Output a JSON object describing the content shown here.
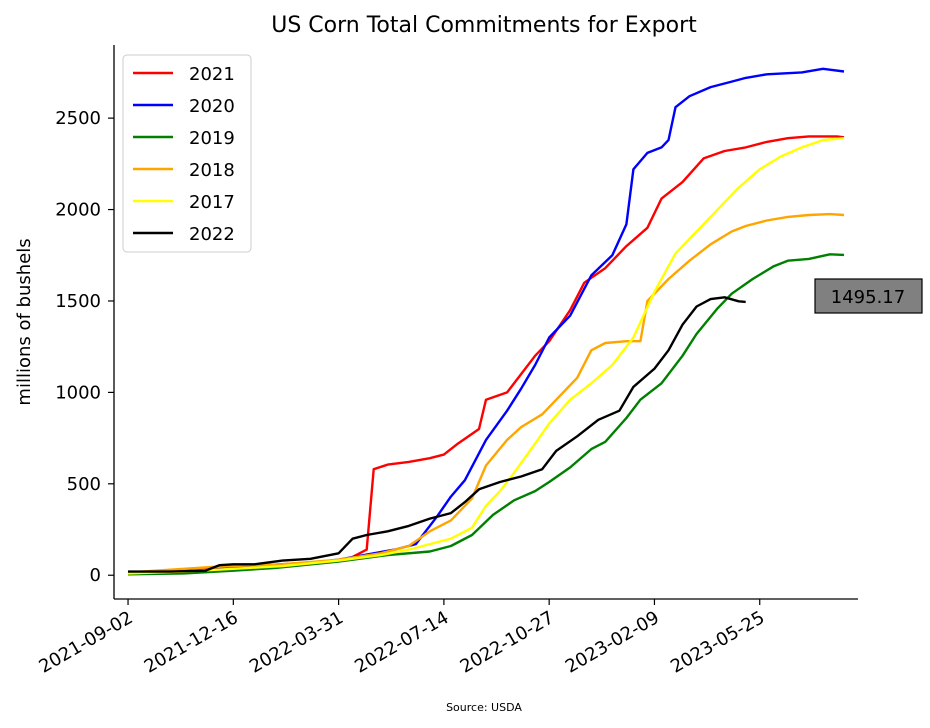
{
  "chart_data": {
    "type": "line",
    "title": "US Corn Total Commitments for Export",
    "ylabel": "millions of bushels",
    "xlabel": "",
    "source": "Source: USDA",
    "x_ticks": [
      "2021-09-02",
      "2021-12-16",
      "2022-03-31",
      "2022-07-14",
      "2022-10-27",
      "2023-02-09",
      "2023-05-25"
    ],
    "y_ticks": [
      0,
      500,
      1000,
      1500,
      2000,
      2500
    ],
    "x_range": [
      "2021-08-19",
      "2023-08-31"
    ],
    "ylim": [
      -130,
      2900
    ],
    "grid": false,
    "legend_position": "top-left",
    "callout": "1495.17",
    "series": [
      {
        "name": "2021",
        "color": "#ff0000",
        "points": [
          [
            "2021-09-02",
            10
          ],
          [
            "2021-10-07",
            20
          ],
          [
            "2021-11-11",
            30
          ],
          [
            "2021-12-16",
            45
          ],
          [
            "2022-02-01",
            60
          ],
          [
            "2022-03-31",
            80
          ],
          [
            "2022-04-14",
            100
          ],
          [
            "2022-04-28",
            140
          ],
          [
            "2022-05-05",
            580
          ],
          [
            "2022-05-19",
            605
          ],
          [
            "2022-06-09",
            620
          ],
          [
            "2022-06-30",
            640
          ],
          [
            "2022-07-14",
            660
          ],
          [
            "2022-07-28",
            720
          ],
          [
            "2022-08-18",
            800
          ],
          [
            "2022-08-25",
            960
          ],
          [
            "2022-09-15",
            1000
          ],
          [
            "2022-09-29",
            1100
          ],
          [
            "2022-10-13",
            1200
          ],
          [
            "2022-10-27",
            1280
          ],
          [
            "2022-11-17",
            1450
          ],
          [
            "2022-12-01",
            1600
          ],
          [
            "2022-12-22",
            1680
          ],
          [
            "2023-01-12",
            1800
          ],
          [
            "2023-02-02",
            1900
          ],
          [
            "2023-02-16",
            2060
          ],
          [
            "2023-03-09",
            2150
          ],
          [
            "2023-03-30",
            2280
          ],
          [
            "2023-04-20",
            2320
          ],
          [
            "2023-05-11",
            2340
          ],
          [
            "2023-06-01",
            2370
          ],
          [
            "2023-06-22",
            2390
          ],
          [
            "2023-07-13",
            2400
          ],
          [
            "2023-08-10",
            2400
          ],
          [
            "2023-08-17",
            2395
          ]
        ]
      },
      {
        "name": "2020",
        "color": "#0000ff",
        "points": [
          [
            "2021-09-02",
            10
          ],
          [
            "2021-11-11",
            20
          ],
          [
            "2021-12-16",
            40
          ],
          [
            "2022-02-17",
            60
          ],
          [
            "2022-03-31",
            85
          ],
          [
            "2022-05-05",
            120
          ],
          [
            "2022-05-26",
            140
          ],
          [
            "2022-06-16",
            170
          ],
          [
            "2022-07-07",
            320
          ],
          [
            "2022-07-21",
            430
          ],
          [
            "2022-08-04",
            520
          ],
          [
            "2022-08-25",
            740
          ],
          [
            "2022-09-15",
            900
          ],
          [
            "2022-09-29",
            1020
          ],
          [
            "2022-10-13",
            1150
          ],
          [
            "2022-10-27",
            1300
          ],
          [
            "2022-11-17",
            1420
          ],
          [
            "2022-12-08",
            1640
          ],
          [
            "2022-12-29",
            1750
          ],
          [
            "2023-01-12",
            1920
          ],
          [
            "2023-01-19",
            2220
          ],
          [
            "2023-02-02",
            2310
          ],
          [
            "2023-02-16",
            2340
          ],
          [
            "2023-02-23",
            2380
          ],
          [
            "2023-03-02",
            2560
          ],
          [
            "2023-03-16",
            2620
          ],
          [
            "2023-04-06",
            2670
          ],
          [
            "2023-04-27",
            2700
          ],
          [
            "2023-05-11",
            2720
          ],
          [
            "2023-06-01",
            2740
          ],
          [
            "2023-07-06",
            2750
          ],
          [
            "2023-07-27",
            2770
          ],
          [
            "2023-08-03",
            2765
          ],
          [
            "2023-08-17",
            2755
          ]
        ]
      },
      {
        "name": "2019",
        "color": "#008000",
        "points": [
          [
            "2021-09-02",
            5
          ],
          [
            "2021-10-28",
            10
          ],
          [
            "2021-12-16",
            25
          ],
          [
            "2022-01-27",
            40
          ],
          [
            "2022-03-31",
            75
          ],
          [
            "2022-05-19",
            110
          ],
          [
            "2022-06-30",
            130
          ],
          [
            "2022-07-21",
            160
          ],
          [
            "2022-08-11",
            220
          ],
          [
            "2022-09-01",
            330
          ],
          [
            "2022-09-22",
            410
          ],
          [
            "2022-10-13",
            460
          ],
          [
            "2022-10-27",
            510
          ],
          [
            "2022-11-17",
            590
          ],
          [
            "2022-12-08",
            690
          ],
          [
            "2022-12-22",
            730
          ],
          [
            "2023-01-12",
            860
          ],
          [
            "2023-01-26",
            960
          ],
          [
            "2023-02-16",
            1050
          ],
          [
            "2023-03-09",
            1200
          ],
          [
            "2023-03-23",
            1320
          ],
          [
            "2023-04-13",
            1460
          ],
          [
            "2023-04-27",
            1540
          ],
          [
            "2023-05-18",
            1620
          ],
          [
            "2023-06-08",
            1690
          ],
          [
            "2023-06-22",
            1720
          ],
          [
            "2023-07-13",
            1730
          ],
          [
            "2023-08-03",
            1755
          ],
          [
            "2023-08-17",
            1752
          ]
        ]
      },
      {
        "name": "2018",
        "color": "#ffa500",
        "points": [
          [
            "2021-09-02",
            15
          ],
          [
            "2021-10-14",
            30
          ],
          [
            "2021-11-25",
            45
          ],
          [
            "2021-12-16",
            50
          ],
          [
            "2022-02-03",
            60
          ],
          [
            "2022-03-31",
            85
          ],
          [
            "2022-05-12",
            120
          ],
          [
            "2022-06-09",
            160
          ],
          [
            "2022-06-30",
            240
          ],
          [
            "2022-07-21",
            300
          ],
          [
            "2022-08-11",
            420
          ],
          [
            "2022-08-25",
            600
          ],
          [
            "2022-09-15",
            740
          ],
          [
            "2022-09-29",
            810
          ],
          [
            "2022-10-20",
            880
          ],
          [
            "2022-11-10",
            1000
          ],
          [
            "2022-11-24",
            1080
          ],
          [
            "2022-12-08",
            1230
          ],
          [
            "2022-12-22",
            1270
          ],
          [
            "2023-01-12",
            1280
          ],
          [
            "2023-01-26",
            1280
          ],
          [
            "2023-02-02",
            1500
          ],
          [
            "2023-02-23",
            1620
          ],
          [
            "2023-03-16",
            1720
          ],
          [
            "2023-04-06",
            1810
          ],
          [
            "2023-04-27",
            1880
          ],
          [
            "2023-05-11",
            1910
          ],
          [
            "2023-06-01",
            1940
          ],
          [
            "2023-06-22",
            1960
          ],
          [
            "2023-07-13",
            1970
          ],
          [
            "2023-08-03",
            1975
          ],
          [
            "2023-08-17",
            1970
          ]
        ]
      },
      {
        "name": "2017",
        "color": "#ffff00",
        "points": [
          [
            "2021-09-02",
            10
          ],
          [
            "2021-10-28",
            20
          ],
          [
            "2021-12-16",
            35
          ],
          [
            "2022-02-03",
            50
          ],
          [
            "2022-03-31",
            80
          ],
          [
            "2022-05-12",
            110
          ],
          [
            "2022-06-09",
            140
          ],
          [
            "2022-06-30",
            170
          ],
          [
            "2022-07-21",
            200
          ],
          [
            "2022-08-11",
            260
          ],
          [
            "2022-08-25",
            380
          ],
          [
            "2022-09-08",
            460
          ],
          [
            "2022-09-22",
            560
          ],
          [
            "2022-10-13",
            720
          ],
          [
            "2022-10-27",
            830
          ],
          [
            "2022-11-17",
            960
          ],
          [
            "2022-12-08",
            1050
          ],
          [
            "2022-12-29",
            1150
          ],
          [
            "2023-01-19",
            1300
          ],
          [
            "2023-02-09",
            1550
          ],
          [
            "2023-03-02",
            1760
          ],
          [
            "2023-03-23",
            1880
          ],
          [
            "2023-04-13",
            2000
          ],
          [
            "2023-05-04",
            2120
          ],
          [
            "2023-05-25",
            2220
          ],
          [
            "2023-06-15",
            2290
          ],
          [
            "2023-07-06",
            2340
          ],
          [
            "2023-07-27",
            2380
          ],
          [
            "2023-08-17",
            2390
          ]
        ]
      },
      {
        "name": "2022",
        "color": "#000000",
        "points": [
          [
            "2021-09-02",
            20
          ],
          [
            "2021-10-14",
            20
          ],
          [
            "2021-11-18",
            25
          ],
          [
            "2021-12-02",
            55
          ],
          [
            "2021-12-16",
            60
          ],
          [
            "2022-01-06",
            60
          ],
          [
            "2022-02-03",
            80
          ],
          [
            "2022-03-03",
            90
          ],
          [
            "2022-03-31",
            120
          ],
          [
            "2022-04-14",
            200
          ],
          [
            "2022-04-28",
            220
          ],
          [
            "2022-05-19",
            240
          ],
          [
            "2022-06-09",
            270
          ],
          [
            "2022-06-30",
            310
          ],
          [
            "2022-07-21",
            340
          ],
          [
            "2022-08-04",
            400
          ],
          [
            "2022-08-18",
            470
          ],
          [
            "2022-09-08",
            510
          ],
          [
            "2022-09-29",
            540
          ],
          [
            "2022-10-20",
            580
          ],
          [
            "2022-11-03",
            680
          ],
          [
            "2022-11-24",
            760
          ],
          [
            "2022-12-15",
            850
          ],
          [
            "2023-01-05",
            900
          ],
          [
            "2023-01-19",
            1030
          ],
          [
            "2023-02-09",
            1130
          ],
          [
            "2023-02-23",
            1230
          ],
          [
            "2023-03-09",
            1370
          ],
          [
            "2023-03-23",
            1470
          ],
          [
            "2023-04-06",
            1510
          ],
          [
            "2023-04-20",
            1520
          ],
          [
            "2023-05-04",
            1498
          ],
          [
            "2023-05-11",
            1495
          ]
        ]
      }
    ]
  }
}
